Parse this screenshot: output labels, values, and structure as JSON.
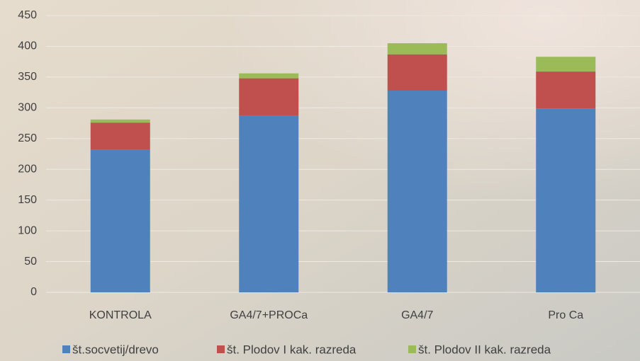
{
  "chart_data": {
    "type": "stacked_bar",
    "categories": [
      "KONTROLA",
      "GA4/7+PROCa",
      "GA4/7",
      "Pro Ca"
    ],
    "series": [
      {
        "name": "št.socvetij/drevo",
        "color": "#4f81bd",
        "values": [
          232,
          287,
          328,
          299
        ]
      },
      {
        "name": "št. Plodov I kak. razreda",
        "color": "#c0504d",
        "values": [
          44,
          61,
          59,
          60
        ]
      },
      {
        "name": "št. Plodov II kak. razreda",
        "color": "#9bbb59",
        "values": [
          5,
          8,
          18,
          24
        ]
      }
    ],
    "ylim": [
      0,
      450
    ],
    "yticks": [
      0,
      50,
      100,
      150,
      200,
      250,
      300,
      350,
      400,
      450
    ],
    "grid": true,
    "legend": "bottom"
  }
}
